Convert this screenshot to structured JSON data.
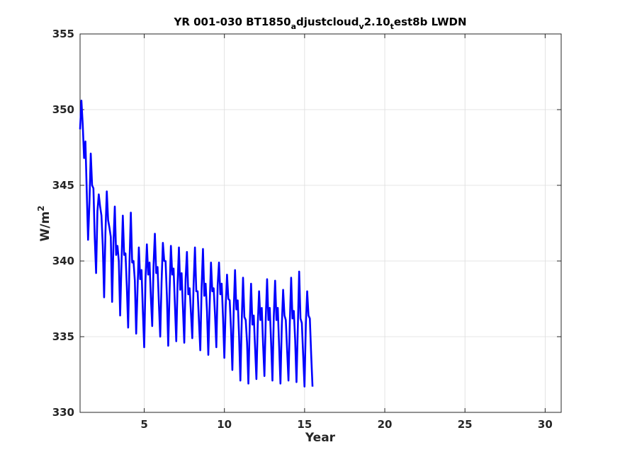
{
  "chart_data": {
    "type": "line",
    "title": {
      "main": "YR 001-030 BT1850",
      "segments": [
        {
          "text": "YR 001-030 BT1850",
          "sub": false
        },
        {
          "text": "a",
          "sub": true
        },
        {
          "text": "djustcloud",
          "sub": false
        },
        {
          "text": "v",
          "sub": true
        },
        {
          "text": "2.10",
          "sub": false
        },
        {
          "text": "t",
          "sub": true
        },
        {
          "text": "est8b LWDN",
          "sub": false
        }
      ]
    },
    "xlabel": "Year",
    "ylabel": {
      "base": "W/m",
      "sup": "2"
    },
    "xlim": [
      1,
      31
    ],
    "ylim": [
      330,
      355
    ],
    "xticks": [
      5,
      10,
      15,
      20,
      25,
      30
    ],
    "yticks": [
      330,
      335,
      340,
      345,
      350,
      355
    ],
    "grid": true,
    "series_color": "#0000ff",
    "series": [
      {
        "x_start": 1.0,
        "x_step": 0.0833,
        "values": [
          348.7,
          350.6,
          349.0,
          346.8,
          347.9,
          344.6,
          341.4,
          343.8,
          347.1,
          345.0,
          344.8,
          341.5,
          339.2,
          343.3,
          344.4,
          343.6,
          343.0,
          341.0,
          337.6,
          341.9,
          344.6,
          342.7,
          342.2,
          341.6,
          337.3,
          341.2,
          343.6,
          340.4,
          341.0,
          340.0,
          336.4,
          339.8,
          343.0,
          340.4,
          340.5,
          338.3,
          335.6,
          339.9,
          343.2,
          339.9,
          340.0,
          338.7,
          335.2,
          338.1,
          340.9,
          338.8,
          339.4,
          336.7,
          334.3,
          338.8,
          341.1,
          339.1,
          339.9,
          337.6,
          335.7,
          339.7,
          341.8,
          339.2,
          339.6,
          337.2,
          335.0,
          338.6,
          341.2,
          340.0,
          340.0,
          337.7,
          334.4,
          338.0,
          341.0,
          339.1,
          339.5,
          337.1,
          334.7,
          338.5,
          340.9,
          338.1,
          339.2,
          336.9,
          334.6,
          338.8,
          340.6,
          337.8,
          338.2,
          336.6,
          334.9,
          338.5,
          340.9,
          338.0,
          338.0,
          336.0,
          334.1,
          338.3,
          340.8,
          337.7,
          338.5,
          336.7,
          333.8,
          337.1,
          339.9,
          338.0,
          338.2,
          336.5,
          334.3,
          338.4,
          339.9,
          337.8,
          338.5,
          336.3,
          333.6,
          337.0,
          339.1,
          337.5,
          337.4,
          335.5,
          332.8,
          336.7,
          339.4,
          336.8,
          337.4,
          335.1,
          332.1,
          336.0,
          338.9,
          336.3,
          336.1,
          334.6,
          331.9,
          335.8,
          338.5,
          335.8,
          336.4,
          334.3,
          332.2,
          335.8,
          338.0,
          336.1,
          336.9,
          334.5,
          332.4,
          336.2,
          338.8,
          336.1,
          336.9,
          334.6,
          332.1,
          336.3,
          338.7,
          336.1,
          336.9,
          334.4,
          331.9,
          335.7,
          338.1,
          336.4,
          336.1,
          334.1,
          332.1,
          335.9,
          338.9,
          336.2,
          336.7,
          334.8,
          332.0,
          335.6,
          339.3,
          336.2,
          335.9,
          333.8,
          331.7,
          335.8,
          338.0,
          336.4,
          336.2,
          333.8,
          331.7
        ]
      }
    ]
  }
}
